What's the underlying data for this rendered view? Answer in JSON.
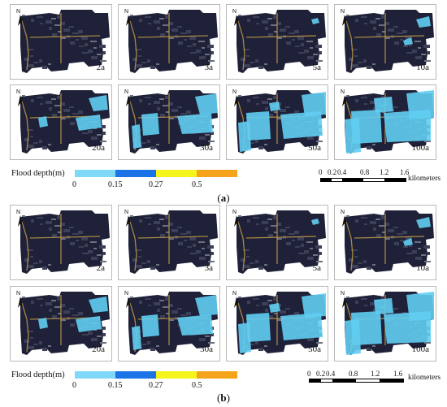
{
  "panels_a": [
    {
      "label": "2a",
      "flood": 0
    },
    {
      "label": "3a",
      "flood": 0
    },
    {
      "label": "5a",
      "flood": 1
    },
    {
      "label": "10a",
      "flood": 2
    },
    {
      "label": "20a",
      "flood": 3
    },
    {
      "label": "30a",
      "flood": 4
    },
    {
      "label": "50a",
      "flood": 5
    },
    {
      "label": "100a",
      "flood": 6
    }
  ],
  "panels_b": [
    {
      "label": "2a",
      "flood": 0
    },
    {
      "label": "3a",
      "flood": 0
    },
    {
      "label": "5a",
      "flood": 1
    },
    {
      "label": "10a",
      "flood": 2
    },
    {
      "label": "20a",
      "flood": 3
    },
    {
      "label": "30a",
      "flood": 4
    },
    {
      "label": "50a",
      "flood": 5
    },
    {
      "label": "100a",
      "flood": 6
    }
  ],
  "north_letter": "N",
  "legend": {
    "title": "Flood depth(m)",
    "ticks": [
      "0",
      "0.15",
      "0.27",
      "0.5"
    ],
    "colors": [
      "#7fd8f7",
      "#1b73e8",
      "#f5f51d",
      "#f5a31b"
    ]
  },
  "scale": {
    "ticks": [
      "0",
      "0.2",
      "0.4",
      "0.8",
      "1.2",
      "1.6"
    ],
    "unit": "kilometers"
  },
  "captions": {
    "a_open": "(",
    "a_letter": "a",
    "a_close": ")",
    "b_open": "(",
    "b_letter": "b",
    "b_close": ")"
  },
  "colors": {
    "urban_dark": "#1f2138",
    "flood": "#61cdf2",
    "road": "#c9a14a"
  }
}
